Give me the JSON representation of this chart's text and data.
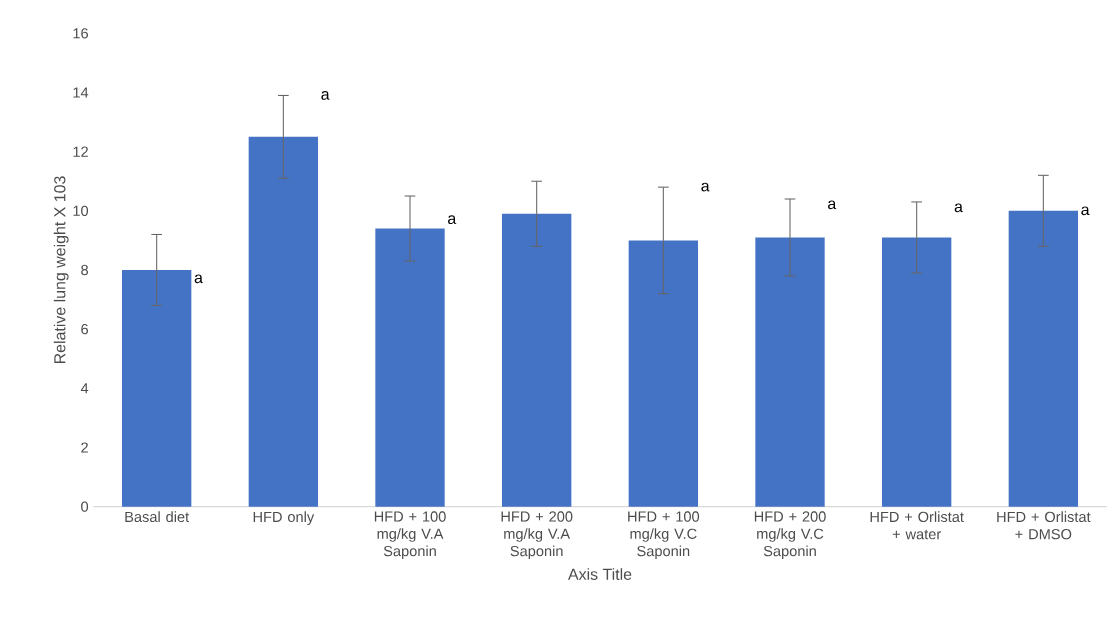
{
  "chart_data": {
    "type": "bar",
    "xlabel": "Axis Title",
    "ylabel": "Relative lung weight X 103",
    "categories": [
      "Basal diet",
      "HFD only",
      "HFD + 100 mg/kg V.A Saponin",
      "HFD + 200 mg/kg V.A Saponin",
      "HFD + 100 mg/kg V.C Saponin",
      "HFD + 200 mg/kg V.C Saponin",
      "HFD + Orlistat + water",
      "HFD + Orlistat + DMSO"
    ],
    "values": [
      8.0,
      12.5,
      9.4,
      9.9,
      9.0,
      9.1,
      9.1,
      10.0
    ],
    "errors": [
      1.2,
      1.4,
      1.1,
      1.1,
      1.8,
      1.3,
      1.2,
      1.2
    ],
    "color": "#4472c4",
    "ylim": [
      0,
      16
    ],
    "yticks": [
      0,
      2,
      4,
      6,
      8,
      10,
      12,
      14,
      16
    ],
    "annotations": [
      {
        "text": "a",
        "x": "Basal diet",
        "y": 7.7
      },
      {
        "text": "a",
        "x": "HFD only",
        "y": 13.9
      },
      {
        "text": "a",
        "x": "HFD + 100 mg/kg V.A Saponin",
        "y": 9.7
      },
      {
        "text": "a",
        "x": "HFD + 100 mg/kg V.C Saponin",
        "y": 10.8
      },
      {
        "text": "a",
        "x": "HFD + 200 mg/kg V.C Saponin",
        "y": 10.2
      },
      {
        "text": "a",
        "x": "HFD + Orlistat + water",
        "y": 10.1
      },
      {
        "text": "a",
        "x": "HFD + Orlistat + DMSO",
        "y": 10.0
      }
    ]
  }
}
